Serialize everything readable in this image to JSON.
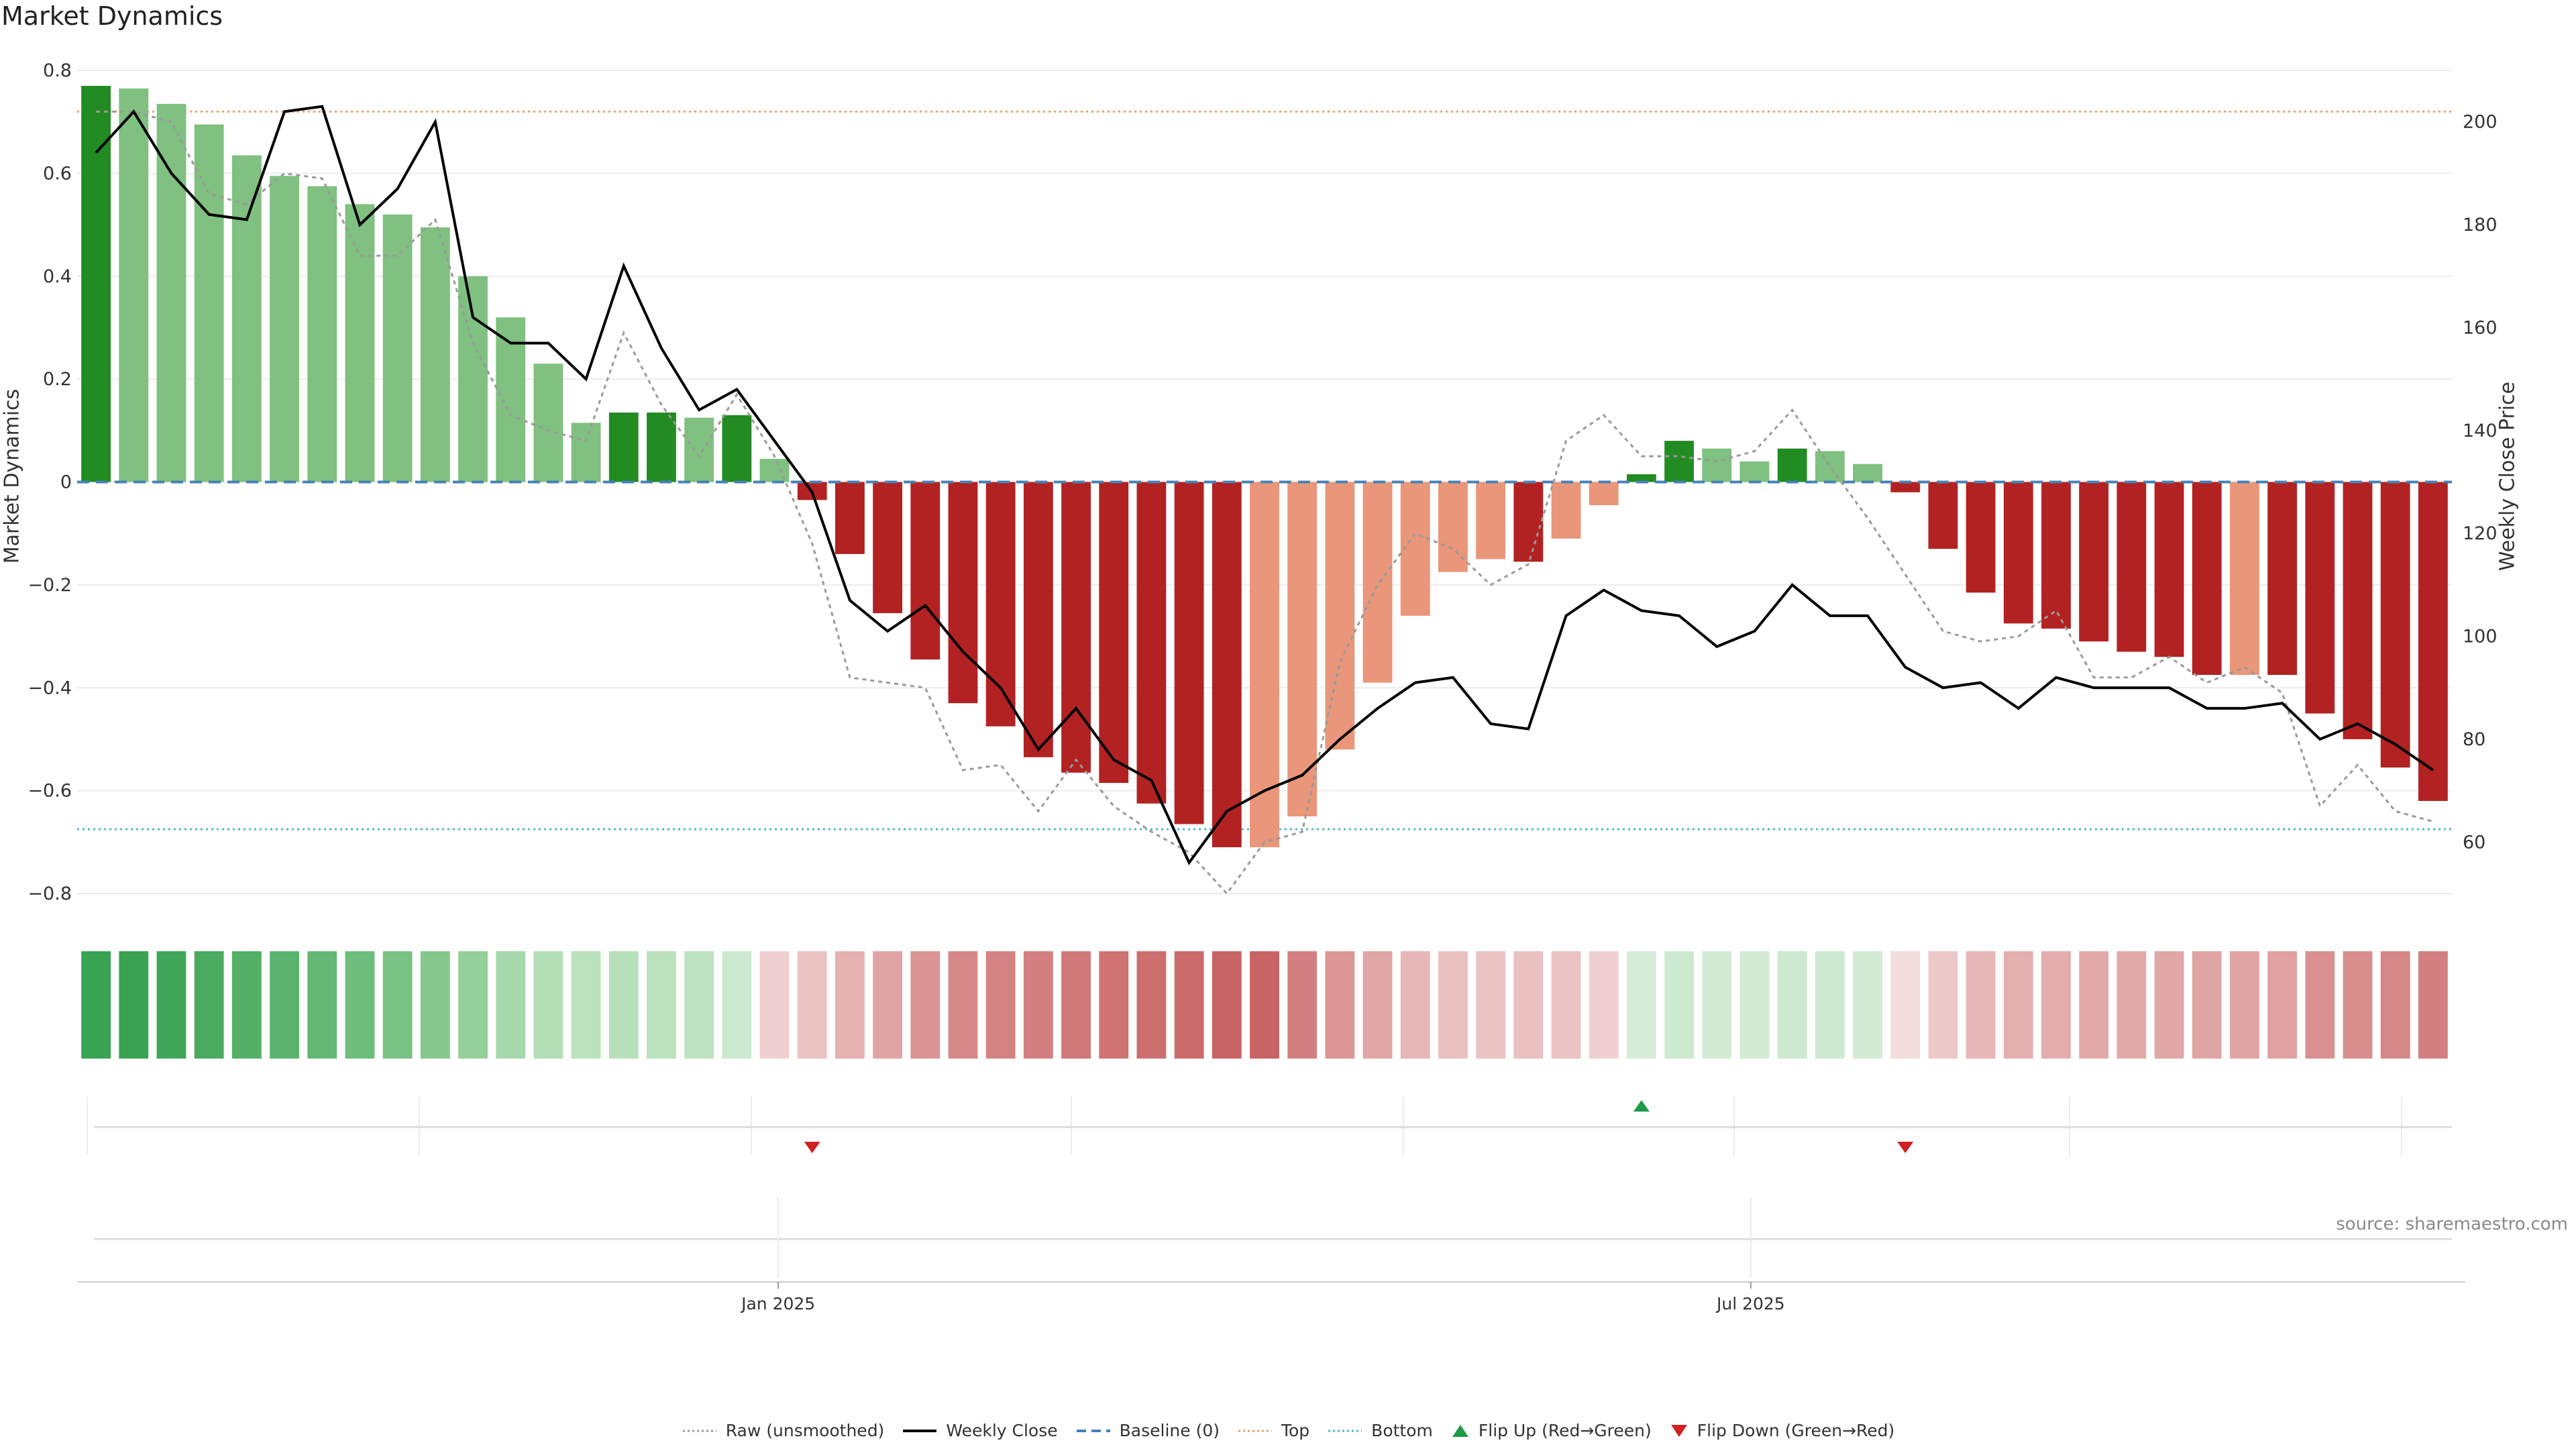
{
  "title": "Market Dynamics",
  "source": "source: sharemaestro.com",
  "chart_data": {
    "type": "bar",
    "title": "Market Dynamics",
    "ylabel": "Market Dynamics",
    "y2label": "Weekly Close Price",
    "ylim": [
      -0.8,
      0.8
    ],
    "y2lim": [
      50,
      210
    ],
    "yticks": [
      0.8,
      0.6,
      0.4,
      0.2,
      0,
      -0.2,
      -0.4,
      -0.6,
      -0.8
    ],
    "y2ticks": [
      200,
      180,
      160,
      140,
      120,
      100,
      80,
      60
    ],
    "xtick_labels": [
      "Jan 2025",
      "Jul 2025"
    ],
    "xtick_positions": [
      18.1,
      43.9
    ],
    "grid": true,
    "legend_placement": "bottom-center",
    "top_level": 0.72,
    "bottom_level": -0.675,
    "baseline": 0,
    "x": [
      0,
      1,
      2,
      3,
      4,
      5,
      6,
      7,
      8,
      9,
      10,
      11,
      12,
      13,
      14,
      15,
      16,
      17,
      18,
      19,
      20,
      21,
      22,
      23,
      24,
      25,
      26,
      27,
      28,
      29,
      30,
      31,
      32,
      33,
      34,
      35,
      36,
      37,
      38,
      39,
      40,
      41,
      42,
      43,
      44,
      45,
      46,
      47,
      48,
      49,
      50,
      51,
      52,
      53,
      54,
      55,
      56,
      57,
      58,
      59,
      60,
      61,
      62
    ],
    "series": [
      {
        "name": "Market Dynamics",
        "values": [
          0.77,
          0.765,
          0.735,
          0.695,
          0.635,
          0.595,
          0.575,
          0.54,
          0.52,
          0.495,
          0.4,
          0.32,
          0.23,
          0.115,
          0.135,
          0.135,
          0.125,
          0.13,
          0.045,
          -0.035,
          -0.14,
          -0.255,
          -0.345,
          -0.43,
          -0.475,
          -0.535,
          -0.565,
          -0.585,
          -0.625,
          -0.665,
          -0.71,
          -0.71,
          -0.65,
          -0.52,
          -0.39,
          -0.26,
          -0.175,
          -0.15,
          -0.155,
          -0.11,
          -0.045,
          0.015,
          0.08,
          0.065,
          0.04,
          0.065,
          0.06,
          0.035,
          -0.02,
          -0.13,
          -0.215,
          -0.275,
          -0.285,
          -0.31,
          -0.33,
          -0.34,
          -0.375,
          -0.375,
          -0.375,
          -0.45,
          -0.5,
          -0.555,
          -0.62
        ],
        "bar_colors": [
          "#228b22",
          "#80c080",
          "#80c080",
          "#80c080",
          "#80c080",
          "#80c080",
          "#80c080",
          "#80c080",
          "#80c080",
          "#80c080",
          "#80c080",
          "#80c080",
          "#80c080",
          "#80c080",
          "#228b22",
          "#228b22",
          "#80c080",
          "#228b22",
          "#80c080",
          "#b22222",
          "#b22222",
          "#b22222",
          "#b22222",
          "#b22222",
          "#b22222",
          "#b22222",
          "#b22222",
          "#b22222",
          "#b22222",
          "#b22222",
          "#b22222",
          "#e9967a",
          "#e9967a",
          "#e9967a",
          "#e9967a",
          "#e9967a",
          "#e9967a",
          "#e9967a",
          "#b22222",
          "#e9967a",
          "#e9967a",
          "#228b22",
          "#228b22",
          "#80c080",
          "#80c080",
          "#228b22",
          "#80c080",
          "#80c080",
          "#b22222",
          "#b22222",
          "#b22222",
          "#b22222",
          "#b22222",
          "#b22222",
          "#b22222",
          "#b22222",
          "#b22222",
          "#e9967a",
          "#b22222",
          "#b22222",
          "#b22222",
          "#b22222",
          "#b22222"
        ]
      },
      {
        "name": "Raw (unsmoothed)",
        "values": [
          0.72,
          0.72,
          0.7,
          0.56,
          0.54,
          0.6,
          0.59,
          0.44,
          0.44,
          0.51,
          0.27,
          0.13,
          0.1,
          0.08,
          0.29,
          0.15,
          0.05,
          0.17,
          0.05,
          -0.12,
          -0.38,
          -0.39,
          -0.4,
          -0.56,
          -0.55,
          -0.64,
          -0.54,
          -0.63,
          -0.68,
          -0.72,
          -0.8,
          -0.7,
          -0.68,
          -0.35,
          -0.2,
          -0.1,
          -0.13,
          -0.2,
          -0.16,
          0.08,
          0.13,
          0.05,
          0.05,
          0.04,
          0.06,
          0.14,
          0.03,
          -0.07,
          -0.18,
          -0.29,
          -0.31,
          -0.3,
          -0.25,
          -0.38,
          -0.38,
          -0.34,
          -0.39,
          -0.36,
          -0.41,
          -0.63,
          -0.55,
          -0.64,
          -0.66
        ]
      },
      {
        "name": "Weekly Close",
        "axis": "right",
        "values": [
          194,
          202,
          190,
          182,
          181,
          202,
          203,
          180,
          187,
          200,
          162,
          157,
          157,
          150,
          172,
          156,
          144,
          148,
          138,
          128,
          107,
          101,
          106,
          97,
          90,
          78,
          86,
          76,
          72,
          56,
          66,
          70,
          73,
          80,
          86,
          91,
          92,
          83,
          82,
          104,
          109,
          105,
          104,
          98,
          101,
          110,
          104,
          104,
          94,
          90,
          91,
          86,
          92,
          90,
          90,
          90,
          86,
          86,
          87,
          80,
          83,
          79,
          74
        ]
      }
    ],
    "lower_panel": {
      "name": "Market Dynamics Heat Strip",
      "cell_colors": [
        "#37a353",
        "#37a353",
        "#40a75a",
        "#4aab61",
        "#52b067",
        "#5bb46d",
        "#64b874",
        "#6dbd7b",
        "#78c283",
        "#85c78d",
        "#95cf9a",
        "#a7d8ab",
        "#b4dfb6",
        "#bae2bc",
        "#b7e0ba",
        "#bae2bc",
        "#bee3c0",
        "#cde9cf",
        "#f0d1d1",
        "#ebc2c2",
        "#e5b1b1",
        "#e0a4a4",
        "#db9494",
        "#d68787",
        "#d48383",
        "#d37f7f",
        "#d07878",
        "#cf7373",
        "#cd6f6f",
        "#cc6b6b",
        "#c96464",
        "#c96464",
        "#d37f7f",
        "#dc9797",
        "#e1a6a6",
        "#e7b6b6",
        "#eac0c0",
        "#ebc3c3",
        "#eac0c0",
        "#ebc3c3",
        "#f0d0d0",
        "#d6ecd8",
        "#cde9cf",
        "#d3ebd5",
        "#d3ebd5",
        "#cde9cf",
        "#cde9cf",
        "#d3ebd5",
        "#f3dcdc",
        "#edc8c8",
        "#e8b7b7",
        "#e4afaf",
        "#e3adad",
        "#e2a9a9",
        "#e2a9a9",
        "#e1a6a6",
        "#e0a4a4",
        "#e0a4a4",
        "#dfa1a1",
        "#da9090",
        "#d98d8d",
        "#d68787",
        "#d37f7f"
      ]
    },
    "flips": [
      {
        "label": "Flip Down (Green→Red)",
        "index": 19,
        "direction": "down"
      },
      {
        "label": "Flip Up (Red→Green)",
        "index": 41,
        "direction": "up"
      },
      {
        "label": "Flip Down (Green→Red)",
        "index": 48,
        "direction": "down"
      }
    ]
  },
  "legend": [
    {
      "label": "Raw (unsmoothed)",
      "icon": "dotted-line-icon",
      "color": "#999999"
    },
    {
      "label": "Weekly Close",
      "icon": "solid-line-icon",
      "color": "#000000"
    },
    {
      "label": "Baseline (0)",
      "icon": "dashed-line-icon",
      "color": "#4682b4"
    },
    {
      "label": "Top",
      "icon": "dotted-line-icon",
      "color": "#e9a070"
    },
    {
      "label": "Bottom",
      "icon": "dotted-line-icon",
      "color": "#4fb3d9"
    },
    {
      "label": "Flip Up (Red→Green)",
      "icon": "triangle-up-icon",
      "color": "#1f9a4a"
    },
    {
      "label": "Flip Down (Green→Red)",
      "icon": "triangle-down-icon",
      "color": "#d02020"
    }
  ]
}
